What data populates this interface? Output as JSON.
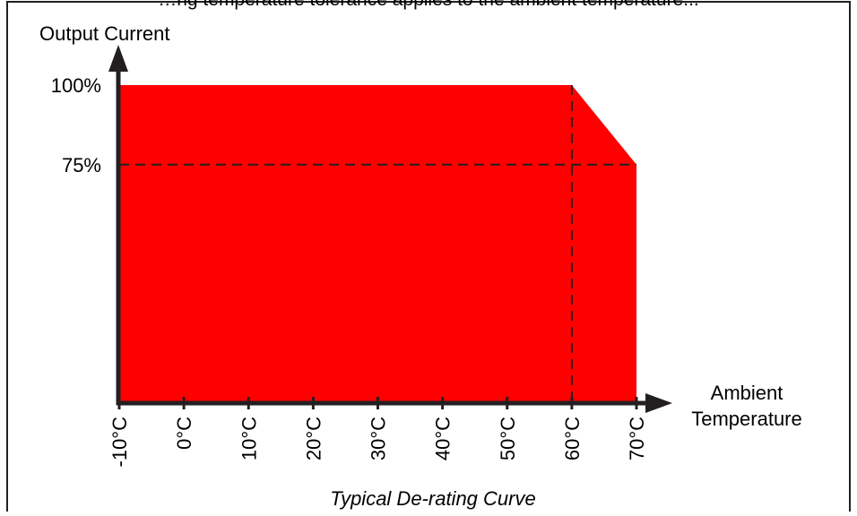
{
  "header_fragment": "…ng temperature tolerance applies to the ambient temperature...",
  "chart_data": {
    "type": "area",
    "title": "",
    "caption": "Typical De-rating Curve",
    "ylabel": "Output Current",
    "xlabel_lines": [
      "Ambient",
      "Temperature"
    ],
    "x_tick_labels": [
      "-10°C",
      "0°C",
      "10°C",
      "20°C",
      "30°C",
      "40°C",
      "50°C",
      "60°C",
      "70°C"
    ],
    "x_ticks": [
      -10,
      0,
      10,
      20,
      30,
      40,
      50,
      60,
      70
    ],
    "y_tick_labels": [
      "100%",
      "75%"
    ],
    "y_ticks": [
      100,
      75
    ],
    "xlim": [
      -10,
      70
    ],
    "ylim": [
      0,
      100
    ],
    "series": [
      {
        "x": [
          -10,
          60,
          70
        ],
        "y": [
          100,
          100,
          75
        ]
      }
    ],
    "guides": [
      {
        "orientation": "horizontal",
        "value": 75
      },
      {
        "orientation": "vertical",
        "value": 60
      }
    ],
    "fill_color": "#ff0000",
    "axis_color": "#231f20",
    "grid": false
  }
}
